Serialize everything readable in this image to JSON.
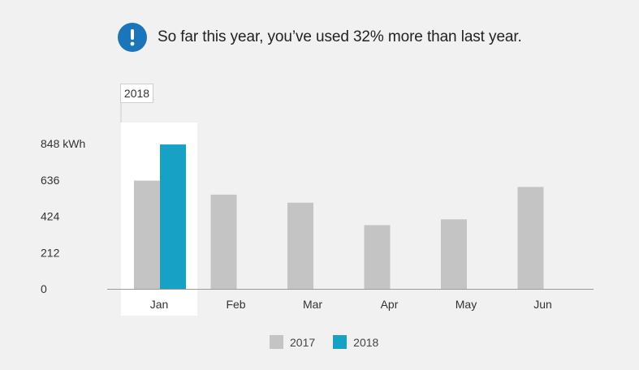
{
  "notice": {
    "icon": "exclamation-circle-icon",
    "icon_color": "#1a75bb",
    "text": "So far this year, you’ve used 32% more than last year."
  },
  "chart_data": {
    "type": "bar",
    "categories": [
      "Jan",
      "Feb",
      "Mar",
      "Apr",
      "May",
      "Jun"
    ],
    "series": [
      {
        "name": "2017",
        "color": "#c4c4c4",
        "values": [
          632,
          550,
          503,
          372,
          406,
          595
        ]
      },
      {
        "name": "2018",
        "color": "#16a1c5",
        "values": [
          843,
          null,
          null,
          null,
          null,
          null
        ]
      }
    ],
    "y_ticks": [
      {
        "value": 0,
        "label": "0"
      },
      {
        "value": 212,
        "label": "212"
      },
      {
        "value": 424,
        "label": "424"
      },
      {
        "value": 636,
        "label": "636"
      },
      {
        "value": 848,
        "label": "848 kWh"
      }
    ],
    "ylim": [
      0,
      848
    ],
    "highlight": {
      "category": "Jan",
      "tooltip": "2018"
    },
    "grid": false,
    "legend_position": "bottom-center"
  }
}
